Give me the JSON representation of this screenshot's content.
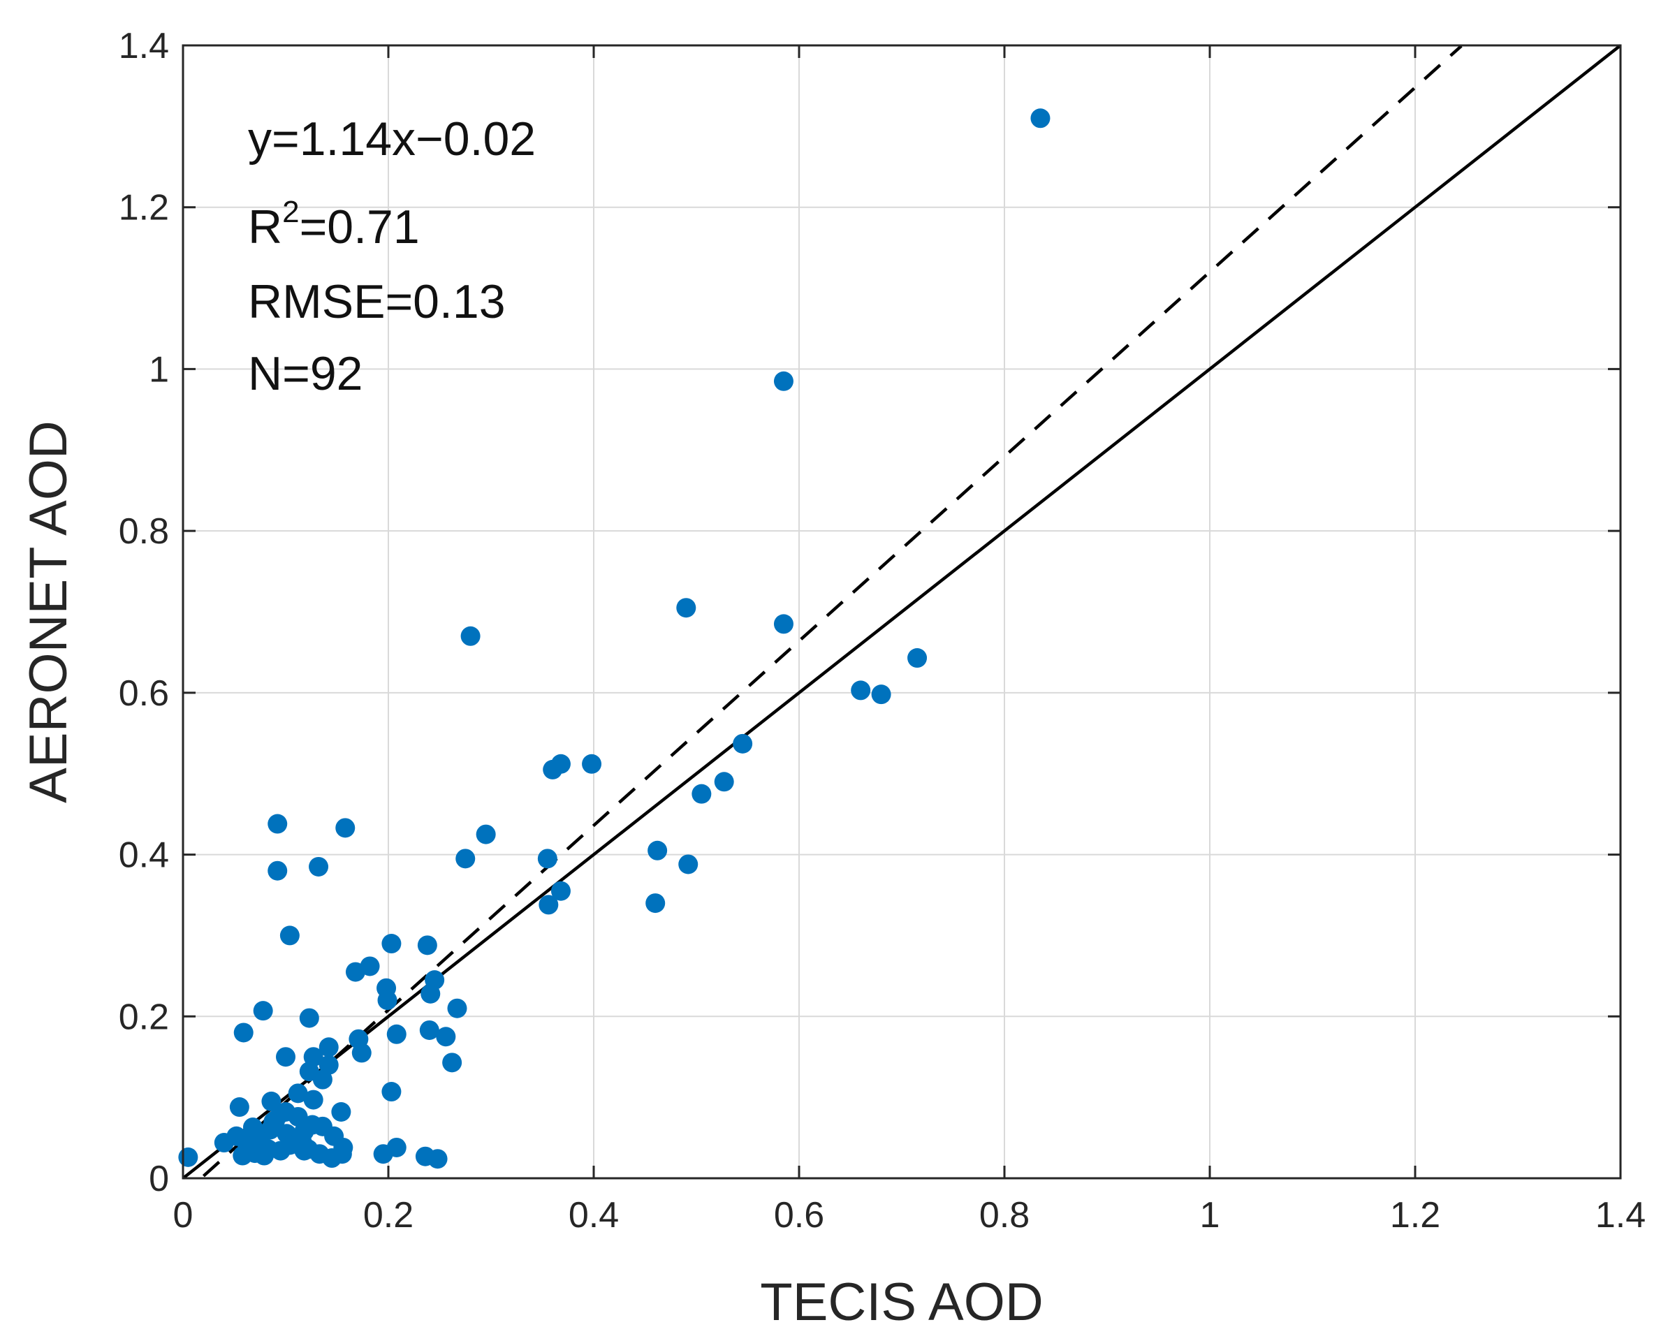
{
  "chart_data": {
    "type": "scatter",
    "title": "",
    "xlabel": "TECIS AOD",
    "ylabel": "AERONET AOD",
    "xlim": [
      0,
      1.4
    ],
    "ylim": [
      0,
      1.4
    ],
    "xticks": [
      0,
      0.2,
      0.4,
      0.6,
      0.8,
      1.0,
      1.2,
      1.4
    ],
    "xtick_labels": [
      "0",
      "0.2",
      "0.4",
      "0.6",
      "0.8",
      "1",
      "1.2",
      "1.4"
    ],
    "yticks": [
      0,
      0.2,
      0.4,
      0.6,
      0.8,
      1.0,
      1.2,
      1.4
    ],
    "ytick_labels": [
      "0",
      "0.2",
      "0.4",
      "0.6",
      "0.8",
      "1",
      "1.2",
      "1.4"
    ],
    "grid": true,
    "colors": {
      "points": "#0072BD",
      "lines": "#000000",
      "grid": "#d9d9d9",
      "axes": "#262626"
    },
    "stats": {
      "equation": "y=1.14x−0.02",
      "r2_base": "R",
      "r2_sup": "2",
      "r2_value": "=0.71",
      "rmse": "RMSE=0.13",
      "n": "N=92"
    },
    "lines": [
      {
        "name": "1:1 line",
        "style": "solid",
        "x": [
          0,
          1.4
        ],
        "y": [
          0,
          1.4
        ]
      },
      {
        "name": "regression fit",
        "style": "dashed",
        "slope": 1.14,
        "intercept": -0.02,
        "x": [
          0.02,
          1.245
        ]
      }
    ],
    "series": [
      {
        "name": "samples",
        "points": [
          [
            0.835,
            1.31
          ],
          [
            0.585,
            0.985
          ],
          [
            0.49,
            0.705
          ],
          [
            0.585,
            0.685
          ],
          [
            0.28,
            0.67
          ],
          [
            0.715,
            0.643
          ],
          [
            0.66,
            0.603
          ],
          [
            0.68,
            0.598
          ],
          [
            0.545,
            0.537
          ],
          [
            0.398,
            0.512
          ],
          [
            0.368,
            0.512
          ],
          [
            0.36,
            0.505
          ],
          [
            0.527,
            0.49
          ],
          [
            0.505,
            0.475
          ],
          [
            0.092,
            0.438
          ],
          [
            0.158,
            0.433
          ],
          [
            0.295,
            0.425
          ],
          [
            0.275,
            0.395
          ],
          [
            0.355,
            0.395
          ],
          [
            0.462,
            0.405
          ],
          [
            0.492,
            0.388
          ],
          [
            0.092,
            0.38
          ],
          [
            0.132,
            0.385
          ],
          [
            0.368,
            0.355
          ],
          [
            0.356,
            0.338
          ],
          [
            0.46,
            0.34
          ],
          [
            0.104,
            0.3
          ],
          [
            0.203,
            0.29
          ],
          [
            0.238,
            0.288
          ],
          [
            0.168,
            0.255
          ],
          [
            0.182,
            0.262
          ],
          [
            0.245,
            0.245
          ],
          [
            0.198,
            0.235
          ],
          [
            0.241,
            0.228
          ],
          [
            0.199,
            0.22
          ],
          [
            0.267,
            0.21
          ],
          [
            0.078,
            0.207
          ],
          [
            0.123,
            0.198
          ],
          [
            0.059,
            0.18
          ],
          [
            0.208,
            0.178
          ],
          [
            0.24,
            0.183
          ],
          [
            0.256,
            0.175
          ],
          [
            0.171,
            0.172
          ],
          [
            0.142,
            0.162
          ],
          [
            0.174,
            0.155
          ],
          [
            0.1,
            0.15
          ],
          [
            0.127,
            0.15
          ],
          [
            0.262,
            0.143
          ],
          [
            0.123,
            0.132
          ],
          [
            0.136,
            0.122
          ],
          [
            0.203,
            0.107
          ],
          [
            0.086,
            0.095
          ],
          [
            0.127,
            0.097
          ],
          [
            0.055,
            0.088
          ],
          [
            0.1,
            0.082
          ],
          [
            0.112,
            0.076
          ],
          [
            0.154,
            0.082
          ],
          [
            0.09,
            0.072
          ],
          [
            0.126,
            0.066
          ],
          [
            0.136,
            0.064
          ],
          [
            0.085,
            0.06
          ],
          [
            0.101,
            0.055
          ],
          [
            0.147,
            0.052
          ],
          [
            0.04,
            0.044
          ],
          [
            0.075,
            0.046
          ],
          [
            0.116,
            0.045
          ],
          [
            0.104,
            0.041
          ],
          [
            0.064,
            0.037
          ],
          [
            0.083,
            0.036
          ],
          [
            0.095,
            0.034
          ],
          [
            0.122,
            0.036
          ],
          [
            0.156,
            0.038
          ],
          [
            0.208,
            0.038
          ],
          [
            0.07,
            0.031
          ],
          [
            0.058,
            0.028
          ],
          [
            0.133,
            0.03
          ],
          [
            0.155,
            0.03
          ],
          [
            0.195,
            0.03
          ],
          [
            0.236,
            0.027
          ],
          [
            0.248,
            0.024
          ],
          [
            0.005,
            0.026
          ],
          [
            0.062,
            0.044
          ],
          [
            0.079,
            0.028
          ],
          [
            0.118,
            0.034
          ],
          [
            0.145,
            0.025
          ],
          [
            0.088,
            0.07
          ],
          [
            0.052,
            0.052
          ],
          [
            0.112,
            0.105
          ],
          [
            0.142,
            0.14
          ],
          [
            0.095,
            0.08
          ],
          [
            0.118,
            0.058
          ],
          [
            0.068,
            0.063
          ]
        ]
      }
    ]
  }
}
